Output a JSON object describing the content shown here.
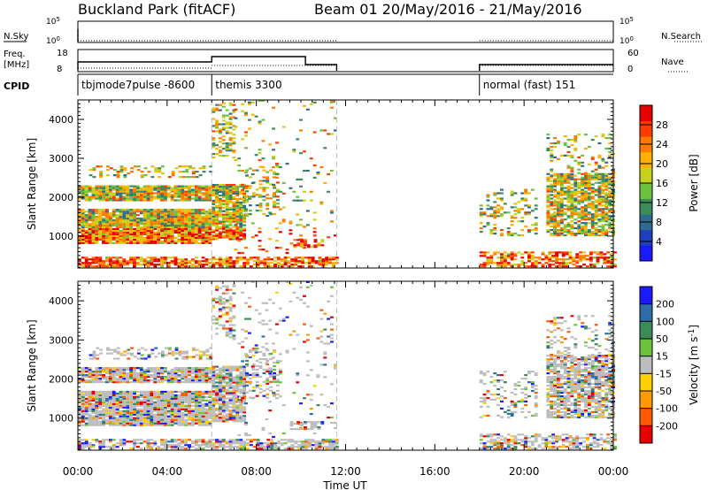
{
  "header": {
    "station": "Buckland Park (fitACF)",
    "beam_date": "Beam 01  20/May/2016 - 21/May/2016"
  },
  "strip_labels": {
    "nsky": "N.Sky",
    "nsearch": "N.Search",
    "freq": "Freq.",
    "freq_unit": "[MHz]",
    "nave": "Nave",
    "cpid": "CPID"
  },
  "strip_ticks": {
    "noise_top": "10^5",
    "noise_bottom": "10^0",
    "freq_top": "18",
    "freq_bottom": "8",
    "nave_top": "60",
    "nave_bottom": "0"
  },
  "cpid_segments": [
    {
      "label": "tbjmode7pulse -8600",
      "start_hour": 0
    },
    {
      "label": "themis 3300",
      "start_hour": 6
    },
    {
      "label": "normal (fast) 151",
      "start_hour": 18
    }
  ],
  "colors": {
    "power_scale": [
      "#1a1aff",
      "#1e3fbf",
      "#2e6b8c",
      "#3b8c5a",
      "#6cc23c",
      "#c8d21e",
      "#ffb000",
      "#ff7a00",
      "#ff3c00",
      "#e60000"
    ],
    "velocity_scale": [
      "#1a1aff",
      "#2f6ba8",
      "#3b8c5a",
      "#6cc23c",
      "#bdbdbd",
      "#ffd000",
      "#ff9a00",
      "#ff5a00",
      "#e60000"
    ]
  },
  "chart_data": [
    {
      "type": "heatmap",
      "title": "Power",
      "xlabel": "Time UT",
      "ylabel": "Slant Range [km]",
      "x_ticks": [
        "00:00",
        "04:00",
        "08:00",
        "12:00",
        "16:00",
        "20:00",
        "00:00"
      ],
      "xlim_hours": [
        0,
        24
      ],
      "y_ticks": [
        "1000",
        "2000",
        "3000",
        "4000"
      ],
      "ylim": [
        180,
        4500
      ],
      "colorbar_label": "Power [dB]",
      "colorbar_ticks": [
        "4",
        "8",
        "12",
        "16",
        "20",
        "24",
        "28"
      ],
      "colorbar_range": [
        0,
        32
      ],
      "data_gaps_hours": [
        [
          11.6,
          18.0
        ]
      ]
    },
    {
      "type": "heatmap",
      "title": "Velocity",
      "xlabel": "Time UT",
      "ylabel": "Slant Range [km]",
      "x_ticks": [
        "00:00",
        "04:00",
        "08:00",
        "12:00",
        "16:00",
        "20:00",
        "00:00"
      ],
      "xlim_hours": [
        0,
        24
      ],
      "y_ticks": [
        "1000",
        "2000",
        "3000",
        "4000"
      ],
      "ylim": [
        180,
        4500
      ],
      "colorbar_label": "Velocity [m s^-1]",
      "colorbar_ticks": [
        "200",
        "100",
        "50",
        "15",
        "-15",
        "-50",
        "-100",
        "-200"
      ],
      "data_gaps_hours": [
        [
          11.6,
          18.0
        ]
      ]
    }
  ]
}
